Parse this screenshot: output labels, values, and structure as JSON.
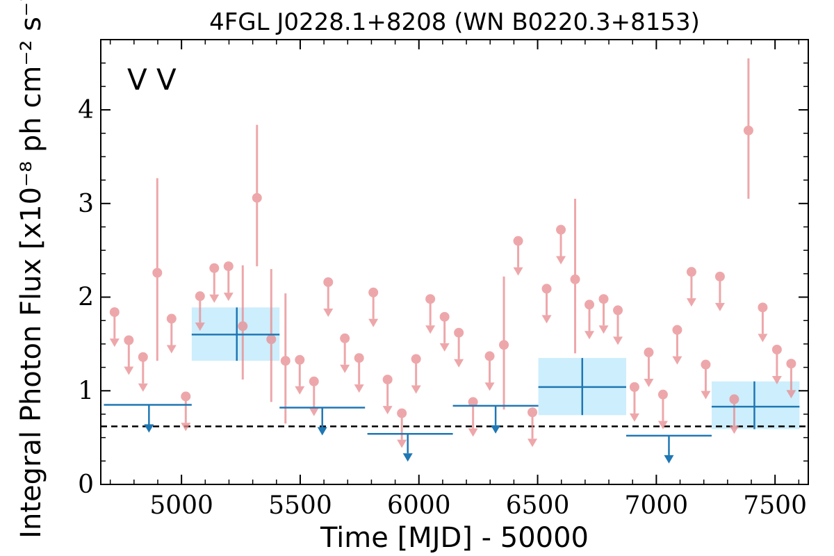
{
  "chart_data": {
    "type": "scatter",
    "title": "4FGL J0228.1+8208 (WN B0220.3+8153)",
    "xlabel": "Time [MJD] - 50000",
    "ylabel": "Integral Photon Flux [x10⁻⁸ ph cm⁻² s⁻¹]",
    "xlim": [
      4660,
      7640
    ],
    "ylim": [
      0,
      4.75
    ],
    "xticks": [
      5000,
      5500,
      6000,
      6500,
      7000,
      7500
    ],
    "yticks": [
      0,
      1,
      2,
      3,
      4
    ],
    "legend": {
      "placement": "top-left",
      "entries": [
        {
          "label": "V",
          "color": "#1f77b4"
        },
        {
          "label": "V",
          "color": "#d62728"
        }
      ]
    },
    "reference_line": {
      "y": 0.62,
      "style": "dashed",
      "color": "#000000"
    },
    "series": [
      {
        "color": "#e88a8e",
        "style": "monthly",
        "detections": [
          {
            "x": 4898,
            "y": 2.26,
            "ylo": 1.32,
            "yhi": 3.27
          },
          {
            "x": 5258,
            "y": 1.69,
            "ylo": 1.12,
            "yhi": 2.34
          },
          {
            "x": 5318,
            "y": 3.06,
            "ylo": 2.33,
            "yhi": 3.84
          },
          {
            "x": 5378,
            "y": 1.55,
            "ylo": 0.88,
            "yhi": 2.3
          },
          {
            "x": 5438,
            "y": 1.32,
            "ylo": 0.65,
            "yhi": 2.04
          },
          {
            "x": 6358,
            "y": 1.49,
            "ylo": 0.8,
            "yhi": 2.22
          },
          {
            "x": 6658,
            "y": 2.19,
            "ylo": 1.4,
            "yhi": 3.05
          },
          {
            "x": 7388,
            "y": 3.78,
            "ylo": 3.05,
            "yhi": 4.55
          }
        ],
        "upper_limits": [
          {
            "x": 4718,
            "y": 1.84
          },
          {
            "x": 4778,
            "y": 1.54
          },
          {
            "x": 4838,
            "y": 1.36
          },
          {
            "x": 4958,
            "y": 1.77
          },
          {
            "x": 5018,
            "y": 0.94
          },
          {
            "x": 5078,
            "y": 2.01
          },
          {
            "x": 5138,
            "y": 2.31
          },
          {
            "x": 5198,
            "y": 2.33
          },
          {
            "x": 5498,
            "y": 1.33
          },
          {
            "x": 5558,
            "y": 1.1
          },
          {
            "x": 5618,
            "y": 2.16
          },
          {
            "x": 5688,
            "y": 1.56
          },
          {
            "x": 5748,
            "y": 1.35
          },
          {
            "x": 5808,
            "y": 2.05
          },
          {
            "x": 5868,
            "y": 1.12
          },
          {
            "x": 5928,
            "y": 0.76
          },
          {
            "x": 5988,
            "y": 1.34
          },
          {
            "x": 6048,
            "y": 1.98
          },
          {
            "x": 6108,
            "y": 1.79
          },
          {
            "x": 6168,
            "y": 1.62
          },
          {
            "x": 6228,
            "y": 0.88
          },
          {
            "x": 6298,
            "y": 1.37
          },
          {
            "x": 6418,
            "y": 2.6
          },
          {
            "x": 6478,
            "y": 0.77
          },
          {
            "x": 6538,
            "y": 2.09
          },
          {
            "x": 6598,
            "y": 2.72
          },
          {
            "x": 6718,
            "y": 1.92
          },
          {
            "x": 6778,
            "y": 1.98
          },
          {
            "x": 6838,
            "y": 1.86
          },
          {
            "x": 6908,
            "y": 1.04
          },
          {
            "x": 6968,
            "y": 1.41
          },
          {
            "x": 7028,
            "y": 0.96
          },
          {
            "x": 7088,
            "y": 1.65
          },
          {
            "x": 7148,
            "y": 2.27
          },
          {
            "x": 7208,
            "y": 1.28
          },
          {
            "x": 7268,
            "y": 2.22
          },
          {
            "x": 7328,
            "y": 0.91
          },
          {
            "x": 7448,
            "y": 1.89
          },
          {
            "x": 7508,
            "y": 1.44
          },
          {
            "x": 7568,
            "y": 1.29
          }
        ]
      },
      {
        "color": "#1f77b4",
        "band_color": "#cdeefc",
        "style": "yearly",
        "detections": [
          {
            "x": 5233,
            "xlo": 5043,
            "xhi": 5413,
            "y": 1.6,
            "ylo": 1.32,
            "yhi": 1.89
          },
          {
            "x": 6688,
            "xlo": 6503,
            "xhi": 6873,
            "y": 1.04,
            "ylo": 0.74,
            "yhi": 1.35
          },
          {
            "x": 7413,
            "xlo": 7233,
            "xhi": 7603,
            "y": 0.83,
            "ylo": 0.59,
            "yhi": 1.1
          }
        ],
        "upper_limits": [
          {
            "x": 4863,
            "xlo": 4673,
            "xhi": 5043,
            "y": 0.85
          },
          {
            "x": 5593,
            "xlo": 5413,
            "xhi": 5773,
            "y": 0.82
          },
          {
            "x": 5953,
            "xlo": 5783,
            "xhi": 6143,
            "y": 0.54
          },
          {
            "x": 6323,
            "xlo": 6143,
            "xhi": 6503,
            "y": 0.84
          },
          {
            "x": 7053,
            "xlo": 6873,
            "xhi": 7233,
            "y": 0.52
          }
        ]
      }
    ]
  }
}
